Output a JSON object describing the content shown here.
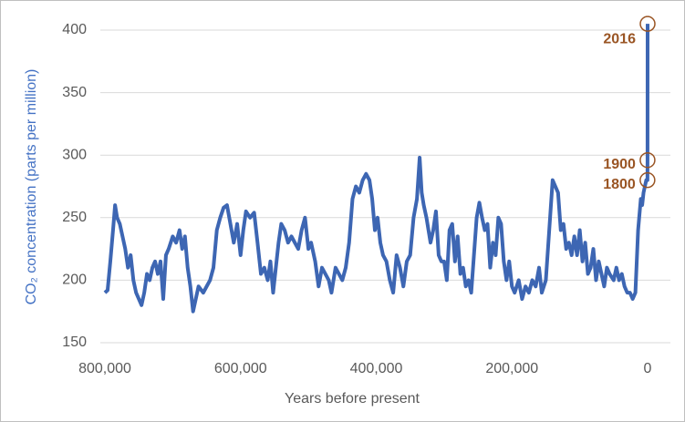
{
  "chart_data": {
    "type": "line",
    "x_label": "Years before present",
    "y_label": "CO₂ concentration (parts per million)",
    "xlim": [
      800000,
      0
    ],
    "xticks": [
      {
        "value": 800000,
        "label": "800,000"
      },
      {
        "value": 600000,
        "label": "600,000"
      },
      {
        "value": 400000,
        "label": "400,000"
      },
      {
        "value": 200000,
        "label": "200,000"
      },
      0
    ],
    "ylim": [
      150,
      400
    ],
    "yticks": [
      150,
      200,
      250,
      300,
      350,
      400
    ],
    "grid": true,
    "series": [
      {
        "color": "#3d66b3",
        "x": [
          800000,
          796000,
          792000,
          788000,
          785000,
          782000,
          778000,
          774000,
          770000,
          766000,
          762000,
          758000,
          754000,
          750000,
          746000,
          742000,
          738000,
          734000,
          730000,
          726000,
          722000,
          718000,
          714000,
          710000,
          706000,
          700000,
          695000,
          690000,
          686000,
          682000,
          678000,
          674000,
          670000,
          666000,
          662000,
          655000,
          650000,
          645000,
          640000,
          635000,
          630000,
          625000,
          620000,
          615000,
          610000,
          605000,
          600000,
          596000,
          592000,
          586000,
          580000,
          575000,
          570000,
          565000,
          560000,
          556000,
          552000,
          548000,
          544000,
          540000,
          535000,
          530000,
          525000,
          520000,
          515000,
          510000,
          505000,
          500000,
          496000,
          490000,
          485000,
          480000,
          475000,
          470000,
          466000,
          460000,
          455000,
          450000,
          445000,
          440000,
          435000,
          430000,
          425000,
          420000,
          415000,
          410000,
          406000,
          402000,
          398000,
          394000,
          390000,
          385000,
          380000,
          375000,
          370000,
          365000,
          360000,
          355000,
          350000,
          345000,
          340000,
          336000,
          333000,
          330000,
          326000,
          320000,
          316000,
          312000,
          308000,
          304000,
          300000,
          296000,
          292000,
          288000,
          284000,
          280000,
          276000,
          272000,
          268000,
          264000,
          260000,
          256000,
          252000,
          248000,
          244000,
          240000,
          236000,
          232000,
          228000,
          224000,
          220000,
          216000,
          212000,
          208000,
          204000,
          200000,
          196000,
          190000,
          185000,
          180000,
          175000,
          170000,
          165000,
          160000,
          156000,
          150000,
          145000,
          140000,
          136000,
          132000,
          128000,
          124000,
          120000,
          116000,
          112000,
          108000,
          104000,
          100000,
          96000,
          92000,
          88000,
          84000,
          80000,
          76000,
          72000,
          68000,
          64000,
          60000,
          56000,
          50000,
          46000,
          42000,
          38000,
          34000,
          30000,
          26000,
          22000,
          18000,
          14000,
          10000,
          8000,
          6000,
          4000,
          2000,
          216,
          116,
          0
        ],
        "values": [
          190,
          192,
          215,
          240,
          260,
          250,
          245,
          235,
          225,
          210,
          220,
          200,
          190,
          185,
          180,
          190,
          205,
          200,
          210,
          215,
          205,
          215,
          185,
          220,
          225,
          235,
          230,
          240,
          225,
          235,
          210,
          195,
          175,
          185,
          195,
          190,
          195,
          200,
          210,
          240,
          250,
          258,
          260,
          245,
          230,
          245,
          220,
          240,
          255,
          250,
          254,
          230,
          205,
          210,
          200,
          215,
          190,
          210,
          230,
          245,
          240,
          230,
          235,
          230,
          225,
          240,
          250,
          225,
          230,
          215,
          195,
          210,
          205,
          200,
          190,
          210,
          205,
          200,
          210,
          230,
          265,
          275,
          270,
          280,
          285,
          280,
          265,
          240,
          250,
          230,
          220,
          215,
          200,
          190,
          220,
          210,
          195,
          215,
          220,
          250,
          265,
          298,
          270,
          260,
          250,
          230,
          240,
          255,
          220,
          215,
          215,
          200,
          240,
          245,
          215,
          235,
          205,
          210,
          195,
          200,
          190,
          220,
          250,
          262,
          250,
          240,
          245,
          210,
          230,
          220,
          250,
          245,
          215,
          200,
          215,
          195,
          190,
          200,
          185,
          195,
          190,
          200,
          195,
          210,
          190,
          200,
          240,
          280,
          275,
          270,
          240,
          245,
          225,
          230,
          220,
          235,
          220,
          240,
          215,
          230,
          205,
          210,
          225,
          200,
          215,
          205,
          195,
          210,
          205,
          200,
          210,
          200,
          205,
          195,
          190,
          190,
          185,
          190,
          240,
          265,
          260,
          270,
          275,
          280,
          280,
          296,
          405
        ]
      }
    ],
    "annotations": [
      {
        "label": "2016",
        "x": 0,
        "y": 405
      },
      {
        "label": "1900",
        "x": 116,
        "y": 296
      },
      {
        "label": "1800",
        "x": 216,
        "y": 280
      }
    ],
    "annotation_color": "#9a5524"
  }
}
